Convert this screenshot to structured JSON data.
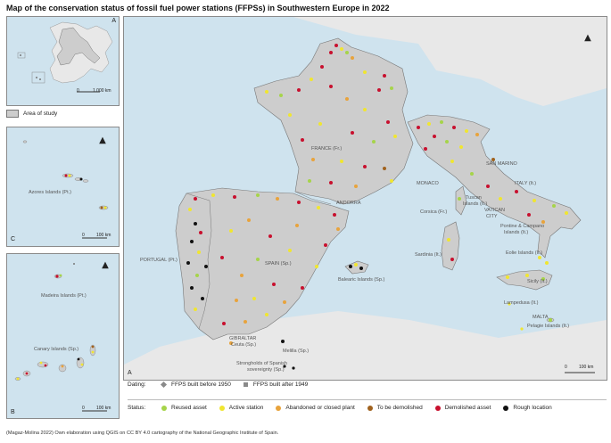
{
  "title": "Map of the conservation status of fossil fuel power stations (FFPSs) in Southwestern Europe in 2022",
  "inset_locator": {
    "scale_start": "0",
    "scale_end": "1.000 km",
    "corner_letter": "A"
  },
  "area_legend": "Area of study",
  "inset_c": {
    "letter": "C",
    "label": "Azores Islands (Pt.)",
    "scale_start": "0",
    "scale_end": "100 km"
  },
  "inset_b": {
    "letter": "B",
    "label_madeira": "Madeira Islands (Pt.)",
    "label_canary": "Canary Islands (Sp.)",
    "scale_start": "0",
    "scale_end": "100 km"
  },
  "main_map": {
    "letter": "A",
    "scale_start": "0",
    "scale_end": "100 km",
    "labels": {
      "france": "FRANCE (Fr.)",
      "spain": "SPAIN (Sp.)",
      "portugal": "PORTUGAL (Pt.)",
      "andorra": "ANDORRA",
      "monaco": "MONACO",
      "san_marino": "SAN MARINO",
      "italy": "ITALY (It.)",
      "vatican": "VATICAN",
      "city": "CITY",
      "corsica": "Corsica (Fr.)",
      "tuscan": "Tuscan",
      "tuscan2": "Islands (It.)",
      "pontine": "Pontine & Campano",
      "pontine2": "Islands (It.)",
      "sardinia": "Sardinia (It.)",
      "eolie": "Eolie Islands (It.)",
      "sicily": "Sicily (It.)",
      "balearic": "Balearic Islands (Sp.)",
      "lampedusa": "Lampedusa (It.)",
      "malta": "MALTA",
      "pelagie": "Pelagie Islands (It.)",
      "gibraltar": "GIBRALTAR",
      "ceuta": "Ceuta (Sp.)",
      "melilla": "Melilla (Sp.)",
      "strongholds": "Strongholds of Spanish",
      "sovereignty": "sovereignty (Sp.)"
    }
  },
  "legend": {
    "dating_label": "Dating:",
    "before_1950": "FFPS built before 1950",
    "after_1949": "FFPS built after 1949",
    "status_label": "Status:",
    "statuses": [
      {
        "label": "Reused asset",
        "color": "#a6d44a"
      },
      {
        "label": "Active station",
        "color": "#f0e630"
      },
      {
        "label": "Abandoned or closed plant",
        "color": "#e8a33c"
      },
      {
        "label": "To be demolished",
        "color": "#a0621e"
      },
      {
        "label": "Demolished asset",
        "color": "#c8102e"
      },
      {
        "label": "Rough location",
        "color": "#111111"
      }
    ]
  },
  "source": "(Magaz-Molina 2022) Own elaboration using QGIS on CC BY 4.0 cartography of the National Geographic Institute of Spain.",
  "colors": {
    "sea": "#cfe3ee",
    "land": "#cdcdcd",
    "land_outside": "#e8e8e8",
    "border": "#7a7a7a"
  }
}
